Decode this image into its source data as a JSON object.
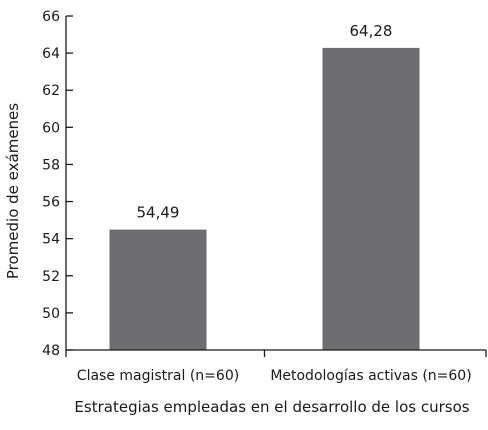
{
  "chart_data": {
    "type": "bar",
    "title": "",
    "xlabel": "Estrategias empleadas en el desarrollo de los cursos",
    "ylabel": "Promedio de exámenes",
    "categories": [
      "Clase magistral (n=60)",
      "Metodologías activas (n=60)"
    ],
    "values": [
      54.49,
      64.28
    ],
    "data_labels": [
      "54,49",
      "64,28"
    ],
    "ylim": [
      48,
      66
    ],
    "yticks": [
      48,
      50,
      52,
      54,
      56,
      58,
      60,
      62,
      64,
      66
    ],
    "bar_color": "#6d6d6f",
    "grid": false,
    "legend": "none"
  }
}
